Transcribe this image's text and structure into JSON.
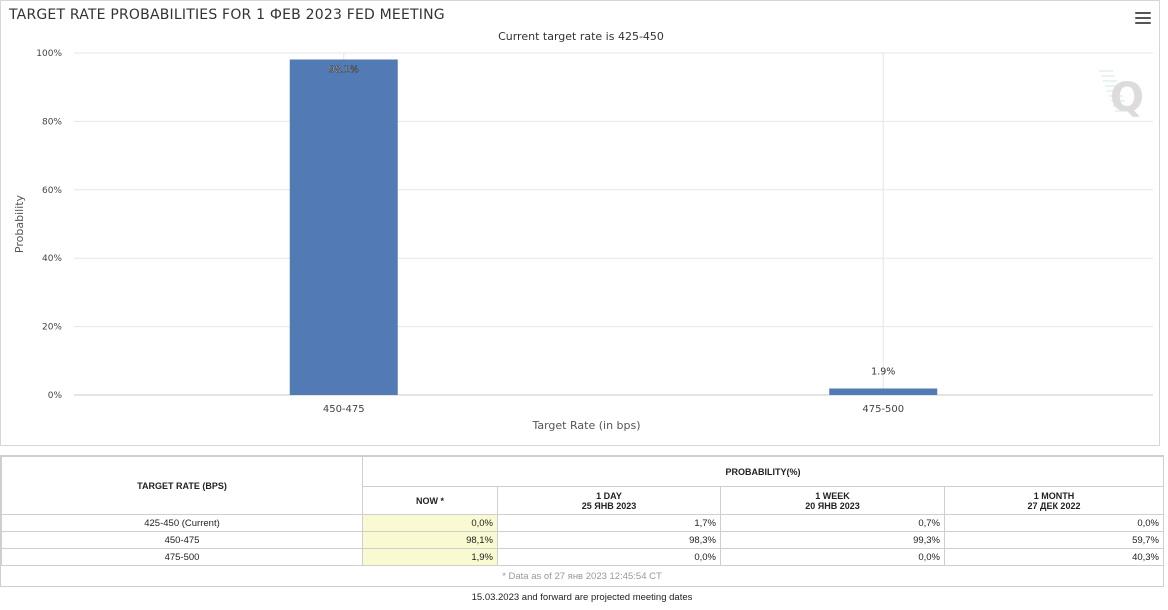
{
  "chart_data": {
    "type": "bar",
    "title": "TARGET RATE PROBABILITIES FOR 1 ФЕВ 2023 FED MEETING",
    "subtitle": "Current target rate is 425-450",
    "xlabel": "Target Rate (in bps)",
    "ylabel": "Probability",
    "categories": [
      "450-475",
      "475-500"
    ],
    "values": [
      98.1,
      1.9
    ],
    "data_labels": [
      "98.1%",
      "1.9%"
    ],
    "ylim": [
      0,
      100
    ],
    "yticks": [
      "0%",
      "20%",
      "40%",
      "60%",
      "80%",
      "100%"
    ],
    "ytick_values": [
      0,
      20,
      40,
      60,
      80,
      100
    ],
    "bar_color": "#527ab5",
    "grid": true
  },
  "table": {
    "rate_header": "TARGET RATE (BPS)",
    "prob_header": "PROBABILITY(%)",
    "columns": [
      {
        "line1": "NOW *",
        "line2": ""
      },
      {
        "line1": "1 DAY",
        "line2": "25 ЯНВ 2023"
      },
      {
        "line1": "1 WEEK",
        "line2": "20 ЯНВ 2023"
      },
      {
        "line1": "1 MONTH",
        "line2": "27 ДЕК 2022"
      }
    ],
    "rows": [
      {
        "rate": "425-450 (Current)",
        "now": "0,0%",
        "day": "1,7%",
        "week": "0,7%",
        "month": "0,0%"
      },
      {
        "rate": "450-475",
        "now": "98,1%",
        "day": "98,3%",
        "week": "99,3%",
        "month": "59,7%"
      },
      {
        "rate": "475-500",
        "now": "1,9%",
        "day": "0,0%",
        "week": "0,0%",
        "month": "40,3%"
      }
    ]
  },
  "notes": {
    "data_as_of": "* Data as of 27 янв 2023 12:45:54 CT",
    "projected": "15.03.2023 and forward are projected meeting dates"
  },
  "colors": {
    "highlight_now": "#f9f9d2",
    "grid": "#e6e6e6"
  }
}
